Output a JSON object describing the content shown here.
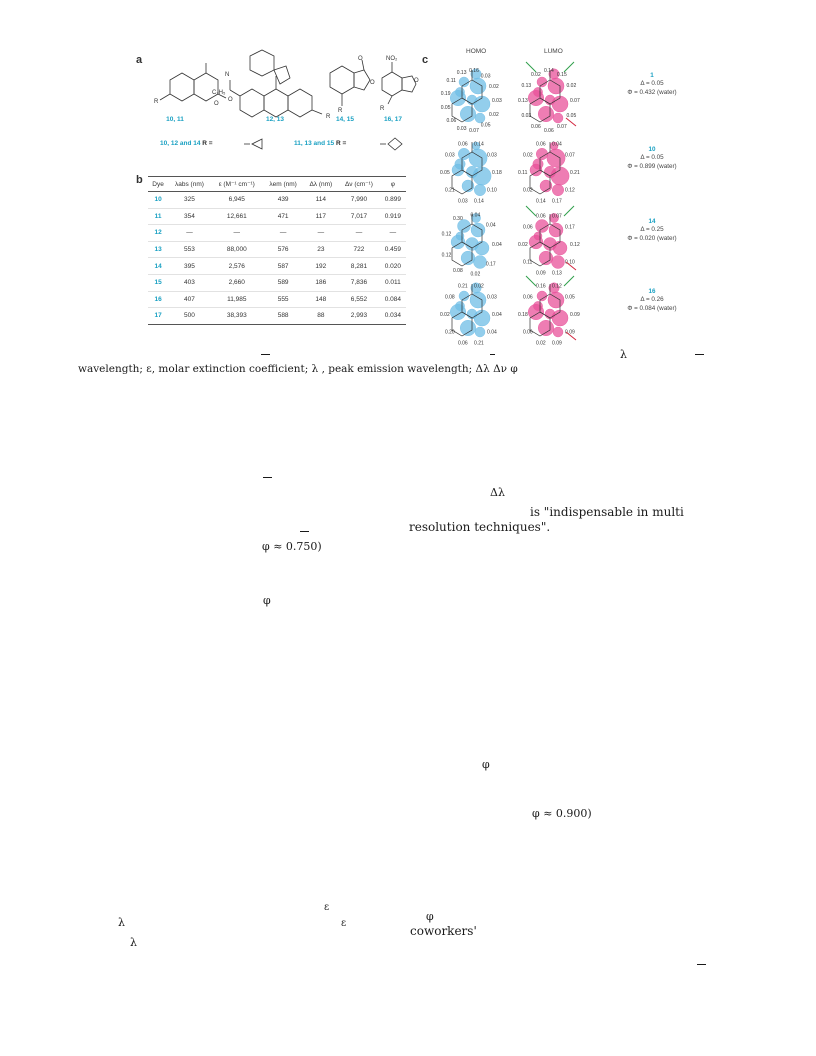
{
  "panel_a": {
    "letter": "a",
    "structures": [
      {
        "label": "10, 11"
      },
      {
        "label": "12, 13"
      },
      {
        "label": "14, 15"
      },
      {
        "label": "16, 17"
      }
    ],
    "legend": [
      {
        "ids": "10, 12 and 14",
        "text": "R ="
      },
      {
        "ids": "11, 13 and 15",
        "text": "R ="
      }
    ]
  },
  "panel_b": {
    "letter": "b",
    "headers": [
      "Dye",
      "λabs (nm)",
      "ε (M⁻¹ cm⁻¹)",
      "λem (nm)",
      "Δλ (nm)",
      "Δν (cm⁻¹)",
      "φ"
    ],
    "rows": [
      [
        "10",
        "325",
        "6,945",
        "439",
        "114",
        "7,990",
        "0.899"
      ],
      [
        "11",
        "354",
        "12,661",
        "471",
        "117",
        "7,017",
        "0.919"
      ],
      [
        "12",
        "—",
        "—",
        "—",
        "—",
        "—",
        "—"
      ],
      [
        "13",
        "553",
        "88,000",
        "576",
        "23",
        "722",
        "0.459"
      ],
      [
        "14",
        "395",
        "2,576",
        "587",
        "192",
        "8,281",
        "0.020"
      ],
      [
        "15",
        "403",
        "2,660",
        "589",
        "186",
        "7,836",
        "0.011"
      ],
      [
        "16",
        "407",
        "11,985",
        "555",
        "148",
        "6,552",
        "0.084"
      ],
      [
        "17",
        "500",
        "38,393",
        "588",
        "88",
        "2,993",
        "0.034"
      ]
    ]
  },
  "panel_c": {
    "letter": "c",
    "homo_title": "HOMO",
    "lumo_title": "LUMO",
    "molecules": [
      {
        "id": "1",
        "delta": "Δ = 0.05",
        "phi": "Φ = 0.432 (water)",
        "homo_labels": [
          "0.03",
          "0.02",
          "0.05",
          "0.07",
          "0.03",
          "0.06",
          "0.05",
          "0.19",
          "0.11",
          "0.13",
          "0.16",
          "0.03",
          "0.02"
        ],
        "lumo_labels": [
          "0.07",
          "0.05",
          "0.07",
          "0.06",
          "0.06",
          "0.03",
          "0.13",
          "0.13",
          "0.02",
          "0.14",
          "0.15",
          "0.02"
        ]
      },
      {
        "id": "10",
        "delta": "Δ = 0.05",
        "phi": "Φ = 0.899 (water)",
        "homo_labels": [
          "0.18",
          "0.10",
          "0.14",
          "0.03",
          "0.21",
          "0.05",
          "0.03",
          "0.06",
          "0.14",
          "0.03"
        ],
        "lumo_labels": [
          "0.21",
          "0.12",
          "0.17",
          "0.14",
          "0.02",
          "0.11",
          "0.02",
          "0.06",
          "0.04",
          "0.07"
        ]
      },
      {
        "id": "14",
        "delta": "Δ = 0.25",
        "phi": "Φ = 0.020 (water)",
        "homo_labels": [
          "0.04",
          "0.17",
          "0.02",
          "0.08",
          "0.12",
          "0.12",
          "0.30",
          "0.04",
          "0.04"
        ],
        "lumo_labels": [
          "0.12",
          "0.10",
          "0.13",
          "0.09",
          "0.11",
          "0.02",
          "0.06",
          "0.06",
          "0.07",
          "0.17"
        ]
      },
      {
        "id": "16",
        "delta": "Δ = 0.26",
        "phi": "Φ = 0.084 (water)",
        "homo_labels": [
          "0.04",
          "0.04",
          "0.21",
          "0.06",
          "0.20",
          "0.02",
          "0.08",
          "0.21",
          "0.02",
          "0.03"
        ],
        "lumo_labels": [
          "0.09",
          "0.09",
          "0.09",
          "0.02",
          "0.06",
          "0.18",
          "0.06",
          "0.16",
          "0.12",
          "0.05"
        ]
      }
    ]
  },
  "caption_line2": "wavelength; ε, molar extinction coefficient; λ   , peak emission wavelength; Δλ      Δν                 φ",
  "fragments": {
    "delta_lambda": "Δλ",
    "quote_1": "is \"indispensable in multi",
    "quote_2": "resolution techniques\".",
    "phi_750": "φ ≈ 0.750)",
    "phi_1": "φ",
    "phi_2": "φ",
    "phi_900": "φ ≈ 0.900)",
    "eps_1": "ε",
    "lambda_1": "λ",
    "eps_2": "ε",
    "phi_3": "φ",
    "coworkers": "coworkers'",
    "lambda_2": "λ",
    "lambda_cap": "λ"
  },
  "colors": {
    "homo": "#6fbde6",
    "lumo": "#e8519a",
    "accent": "#19a0c2",
    "arrow_green": "#2e9e4a",
    "arrow_red": "#d2263f"
  }
}
